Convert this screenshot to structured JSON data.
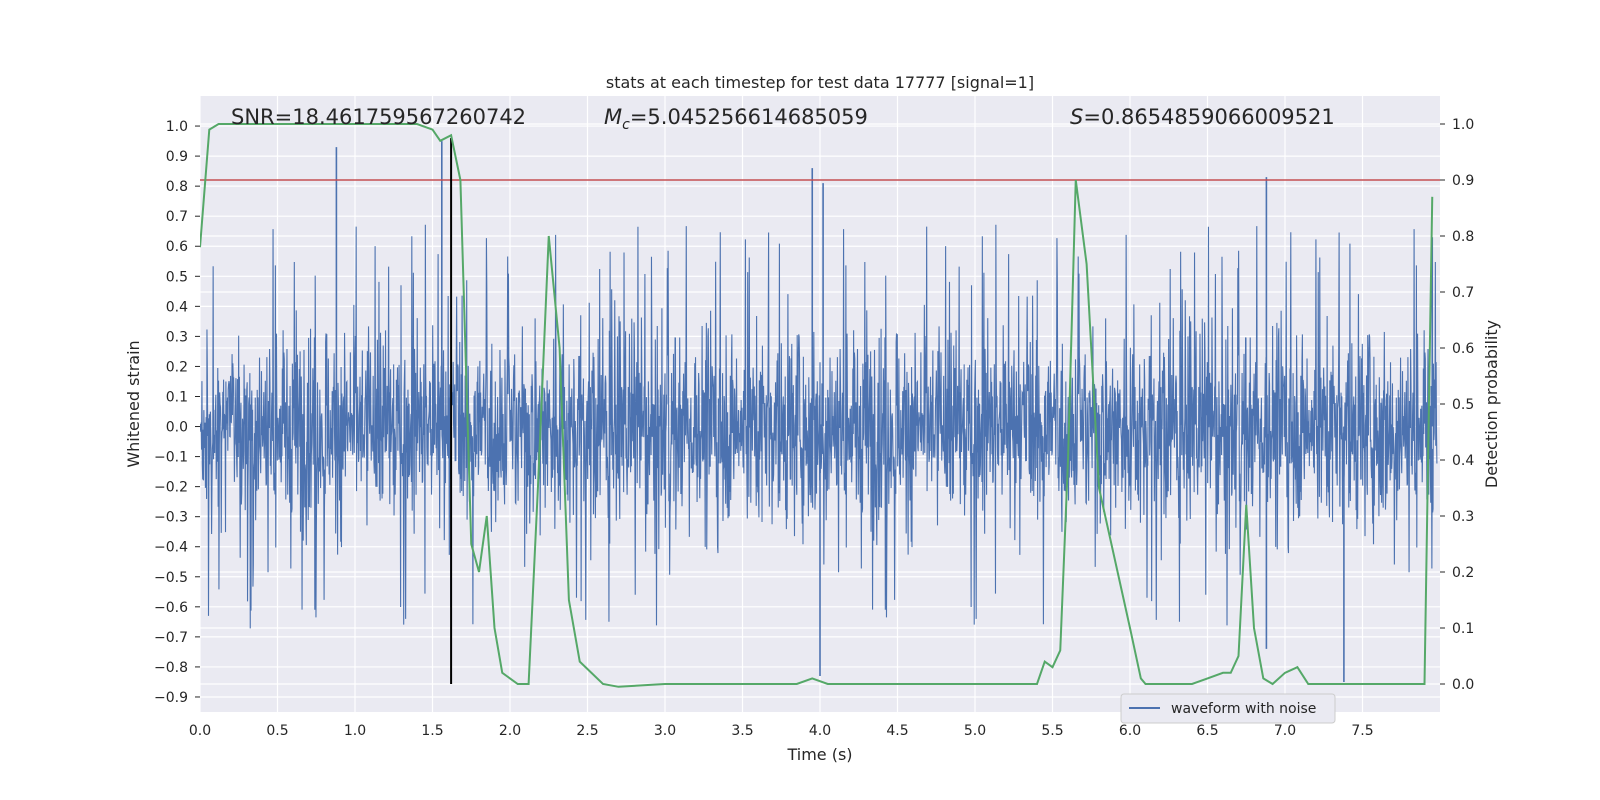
{
  "chart_data": {
    "type": "line",
    "title": "stats at each timestep for test data 17777 [signal=1]",
    "xlabel": "Time (s)",
    "ylabel": "Whitened strain",
    "y2label": "Detection probability",
    "xlim": [
      0.0,
      8.0
    ],
    "ylim": [
      -0.95,
      1.1
    ],
    "y2lim": [
      -0.05,
      1.05
    ],
    "x_ticks": [
      0.0,
      0.5,
      1.0,
      1.5,
      2.0,
      2.5,
      3.0,
      3.5,
      4.0,
      4.5,
      5.0,
      5.5,
      6.0,
      6.5,
      7.0,
      7.5
    ],
    "x_tick_labels": [
      "0.0",
      "0.5",
      "1.0",
      "1.5",
      "2.0",
      "2.5",
      "3.0",
      "3.5",
      "4.0",
      "4.5",
      "5.0",
      "5.5",
      "6.0",
      "6.5",
      "7.0",
      "7.5"
    ],
    "y_ticks": [
      -0.9,
      -0.8,
      -0.7,
      -0.6,
      -0.5,
      -0.4,
      -0.3,
      -0.2,
      -0.1,
      0.0,
      0.1,
      0.2,
      0.3,
      0.4,
      0.5,
      0.6,
      0.7,
      0.8,
      0.9,
      1.0
    ],
    "y_tick_labels": [
      "−0.9",
      "−0.8",
      "−0.7",
      "−0.6",
      "−0.5",
      "−0.4",
      "−0.3",
      "−0.2",
      "−0.1",
      "0.0",
      "0.1",
      "0.2",
      "0.3",
      "0.4",
      "0.5",
      "0.6",
      "0.7",
      "0.8",
      "0.9",
      "1.0"
    ],
    "y2_ticks": [
      0.0,
      0.1,
      0.2,
      0.3,
      0.4,
      0.5,
      0.6,
      0.7,
      0.8,
      0.9,
      1.0
    ],
    "y2_tick_labels": [
      "0.0",
      "0.1",
      "0.2",
      "0.3",
      "0.4",
      "0.5",
      "0.6",
      "0.7",
      "0.8",
      "0.9",
      "1.0"
    ],
    "grid": true,
    "background_color": "#EAEAF2",
    "annotations": [
      {
        "text": "SNR=18.461759567260742",
        "x": 0.2,
        "y": 1.02
      },
      {
        "text": "M",
        "sub": "c",
        "rest": "=5.045256614685059",
        "x": 2.6,
        "y": 1.02
      },
      {
        "text": "S",
        "rest": "=0.8654859066009521",
        "x": 5.6,
        "y": 1.02
      }
    ],
    "waveform": {
      "name": "waveform with noise",
      "color": "#4C72B0",
      "note": "dense noisy strain trace spanning roughly −0.6 to +0.6 with spikes",
      "notable_spikes": [
        {
          "x": 0.88,
          "y": 0.93
        },
        {
          "x": 1.56,
          "y": 0.95
        },
        {
          "x": 1.62,
          "y": -0.6
        },
        {
          "x": 3.95,
          "y": 0.86
        },
        {
          "x": 4.02,
          "y": 0.81
        },
        {
          "x": 4.0,
          "y": -0.83
        },
        {
          "x": 6.88,
          "y": 0.83
        },
        {
          "x": 6.88,
          "y": -0.74
        },
        {
          "x": 7.38,
          "y": -0.85
        },
        {
          "x": 7.95,
          "y": 0.63
        }
      ]
    },
    "detection_probability": {
      "color": "#55A868",
      "axis": "y2",
      "x": [
        0.0,
        0.06,
        0.12,
        0.25,
        0.5,
        1.0,
        1.4,
        1.5,
        1.55,
        1.62,
        1.68,
        1.75,
        1.8,
        1.85,
        1.9,
        1.95,
        2.0,
        2.05,
        2.12,
        2.18,
        2.25,
        2.32,
        2.38,
        2.45,
        2.6,
        2.7,
        3.0,
        3.5,
        3.7,
        3.8,
        3.85,
        3.95,
        4.05,
        4.3,
        4.7,
        4.9,
        5.0,
        5.4,
        5.45,
        5.5,
        5.55,
        5.6,
        5.65,
        5.72,
        5.8,
        6.0,
        6.07,
        6.1,
        6.15,
        6.25,
        6.4,
        6.5,
        6.6,
        6.65,
        6.7,
        6.75,
        6.8,
        6.86,
        6.92,
        7.0,
        7.08,
        7.15,
        7.25,
        7.5,
        7.85,
        7.9,
        7.95
      ],
      "y": [
        0.78,
        0.99,
        1.0,
        1.0,
        1.0,
        1.0,
        1.0,
        0.99,
        0.97,
        0.98,
        0.9,
        0.25,
        0.2,
        0.3,
        0.1,
        0.02,
        0.01,
        0.0,
        0.0,
        0.35,
        0.8,
        0.6,
        0.15,
        0.04,
        0.0,
        -0.005,
        0.0,
        0.0,
        0.0,
        0.0,
        0.0,
        0.01,
        0.0,
        0.0,
        0.0,
        0.0,
        0.0,
        0.0,
        0.04,
        0.03,
        0.06,
        0.4,
        0.9,
        0.75,
        0.35,
        0.1,
        0.01,
        0.0,
        0.0,
        0.0,
        0.0,
        0.01,
        0.02,
        0.02,
        0.05,
        0.32,
        0.1,
        0.01,
        0.0,
        0.02,
        0.03,
        0.0,
        0.0,
        0.0,
        0.0,
        0.0,
        0.87
      ]
    },
    "threshold": {
      "color": "#C44E52",
      "y2": 0.9
    },
    "vertical_line": {
      "color": "#000000",
      "x": 1.62
    },
    "legend": {
      "placement": "lower-right",
      "entries": [
        "waveform with noise"
      ]
    }
  }
}
